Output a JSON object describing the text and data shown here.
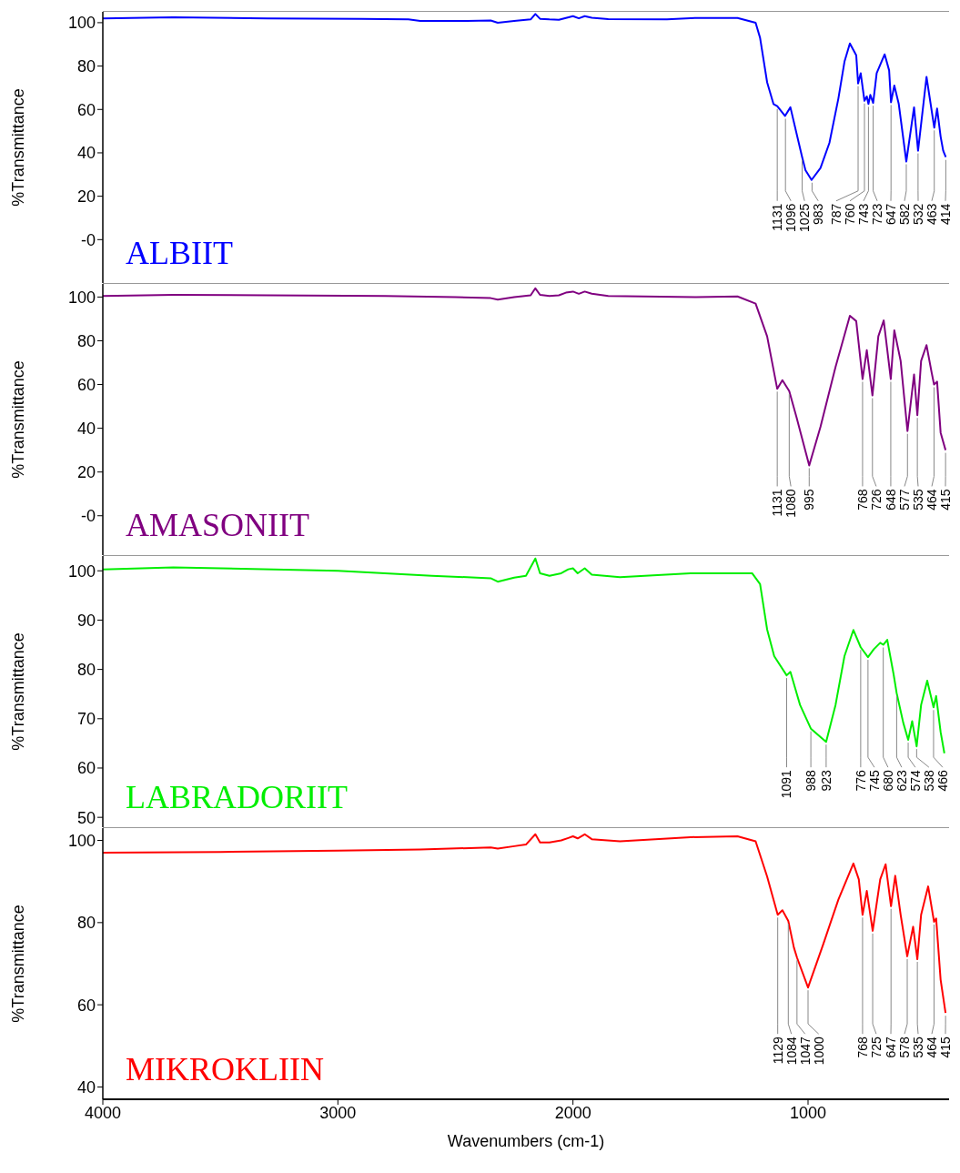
{
  "chart_data": [
    {
      "type": "line",
      "ylabel": "%Transmittance",
      "xlim": [
        4000,
        400
      ],
      "xticks": [
        4000,
        3000,
        2000,
        1000
      ],
      "ylim": [
        -20,
        105
      ],
      "yticks": [
        {
          "value": 0,
          "label": "-0"
        },
        20,
        40,
        60,
        80,
        100
      ],
      "tick_labels": "y",
      "x": [
        4000,
        3700,
        3300,
        2900,
        2700,
        2650,
        2450,
        2350,
        2320,
        2250,
        2180,
        2160,
        2140,
        2100,
        2060,
        2030,
        2000,
        1975,
        1950,
        1920,
        1850,
        1600,
        1476,
        1300,
        1223,
        1204,
        1174,
        1147,
        1131,
        1098,
        1075,
        1049,
        1025,
        1011,
        985,
        947,
        909,
        871,
        845,
        822,
        795,
        787,
        776,
        760,
        750,
        743,
        735,
        723,
        708,
        674,
        655,
        647,
        633,
        614,
        582,
        549,
        532,
        496,
        463,
        451,
        436,
        425,
        414
      ],
      "series": [
        {
          "name": "ALBIIT",
          "color": "#0000ff",
          "values": [
            102,
            102.5,
            102,
            101.8,
            101.5,
            100.8,
            100.8,
            101,
            100,
            100.8,
            101.5,
            104,
            101.8,
            101.5,
            101.3,
            102.2,
            103,
            102,
            103,
            102.3,
            101.6,
            101.5,
            102.2,
            102.2,
            100,
            93,
            72.5,
            62.5,
            61.5,
            57,
            61,
            49,
            38,
            32,
            27.5,
            33,
            44.6,
            65,
            82,
            90.4,
            85,
            72,
            76.7,
            64,
            66,
            62.5,
            66.7,
            63,
            76.7,
            85.4,
            78,
            63.3,
            71,
            62.5,
            36,
            61,
            41,
            75,
            51.6,
            60.4,
            47.5,
            41,
            38
          ]
        }
      ],
      "annotations": [
        {
          "text": "1131",
          "x": 1131,
          "y": 61.5
        },
        {
          "text": "1096",
          "x": 1096,
          "y": 57
        },
        {
          "text": "1025",
          "x": 1025,
          "y": 38
        },
        {
          "text": "983",
          "x": 983,
          "y": 27.5
        },
        {
          "text": "787",
          "x": 787,
          "y": 72
        },
        {
          "text": "760",
          "x": 760,
          "y": 64
        },
        {
          "text": "743",
          "x": 743,
          "y": 62.5
        },
        {
          "text": "723",
          "x": 723,
          "y": 63
        },
        {
          "text": "647",
          "x": 647,
          "y": 63.3
        },
        {
          "text": "582",
          "x": 582,
          "y": 36
        },
        {
          "text": "532",
          "x": 532,
          "y": 41
        },
        {
          "text": "463",
          "x": 463,
          "y": 51.6
        },
        {
          "text": "414",
          "x": 414,
          "y": 38
        }
      ]
    },
    {
      "type": "line",
      "ylabel": "%Transmittance",
      "xlim": [
        4000,
        400
      ],
      "xticks": [
        4000,
        3000,
        2000,
        1000
      ],
      "ylim": [
        -18,
        106
      ],
      "yticks": [
        {
          "value": 0,
          "label": "-0"
        },
        20,
        40,
        60,
        80,
        100
      ],
      "tick_labels": "y",
      "x": [
        4000,
        3700,
        3300,
        2800,
        2500,
        2350,
        2320,
        2250,
        2180,
        2160,
        2140,
        2100,
        2060,
        2030,
        2000,
        1975,
        1950,
        1920,
        1850,
        1476,
        1300,
        1223,
        1174,
        1131,
        1109,
        1080,
        1049,
        995,
        947,
        883,
        822,
        795,
        768,
        750,
        726,
        701,
        678,
        648,
        633,
        606,
        577,
        549,
        535,
        519,
        496,
        474,
        464,
        451,
        436,
        415
      ],
      "series": [
        {
          "name": "AMASONIIT",
          "color": "#800080",
          "values": [
            100.5,
            101,
            100.8,
            100.5,
            100,
            99.5,
            98.8,
            100,
            100.8,
            104,
            101,
            100.5,
            100.8,
            102,
            102.5,
            101.5,
            102.5,
            101.5,
            100.5,
            100,
            100.3,
            97,
            82,
            58,
            62,
            57,
            45,
            23,
            40.7,
            68,
            91.4,
            89,
            62.5,
            75.7,
            55,
            82,
            89.3,
            62.5,
            84.8,
            70.8,
            38.7,
            64.6,
            46,
            70.8,
            78,
            65.4,
            60,
            61.3,
            38,
            30
          ]
        }
      ],
      "annotations": [
        {
          "text": "1131",
          "x": 1131,
          "y": 58
        },
        {
          "text": "1080",
          "x": 1080,
          "y": 57
        },
        {
          "text": "995",
          "x": 995,
          "y": 23
        },
        {
          "text": "768",
          "x": 768,
          "y": 62.5
        },
        {
          "text": "726",
          "x": 726,
          "y": 55
        },
        {
          "text": "648",
          "x": 648,
          "y": 62.5
        },
        {
          "text": "577",
          "x": 577,
          "y": 38.7
        },
        {
          "text": "535",
          "x": 535,
          "y": 46
        },
        {
          "text": "464",
          "x": 464,
          "y": 60
        },
        {
          "text": "415",
          "x": 415,
          "y": 30
        }
      ]
    },
    {
      "type": "line",
      "ylabel": "%Transmittance",
      "xlim": [
        4000,
        400
      ],
      "xticks": [
        4000,
        3000,
        2000,
        1000
      ],
      "ylim": [
        48,
        103
      ],
      "yticks": [
        50,
        60,
        70,
        80,
        90,
        100
      ],
      "tick_labels": "y",
      "x": [
        4000,
        3700,
        3000,
        2600,
        2350,
        2320,
        2250,
        2200,
        2160,
        2140,
        2100,
        2050,
        2020,
        2000,
        1980,
        1950,
        1920,
        1800,
        1500,
        1351,
        1238,
        1204,
        1174,
        1144,
        1091,
        1075,
        1034,
        988,
        923,
        883,
        845,
        807,
        776,
        745,
        720,
        693,
        680,
        663,
        636,
        623,
        595,
        574,
        557,
        538,
        519,
        493,
        466,
        455,
        436,
        420
      ],
      "series": [
        {
          "name": "LABRADORIIT",
          "color": "#00ee00",
          "values": [
            100.3,
            100.7,
            100,
            99,
            98.5,
            97.8,
            98.6,
            99,
            102.5,
            99.5,
            99,
            99.5,
            100.3,
            100.5,
            99.5,
            100.5,
            99.2,
            98.7,
            99.5,
            99.5,
            99.5,
            97.3,
            88.1,
            82.7,
            78.8,
            79.5,
            72.8,
            68,
            65.3,
            72.8,
            82.7,
            88,
            84.5,
            82.5,
            84.1,
            85.4,
            85,
            86,
            79,
            75.2,
            69.2,
            65.7,
            69.5,
            64.4,
            72.8,
            77.7,
            72.3,
            74.6,
            67.3,
            63
          ]
        }
      ],
      "annotations": [
        {
          "text": "1091",
          "x": 1091,
          "y": 78.8
        },
        {
          "text": "988",
          "x": 988,
          "y": 68
        },
        {
          "text": "923",
          "x": 923,
          "y": 65.3
        },
        {
          "text": "776",
          "x": 776,
          "y": 84.5
        },
        {
          "text": "745",
          "x": 745,
          "y": 82.5
        },
        {
          "text": "680",
          "x": 680,
          "y": 85
        },
        {
          "text": "623",
          "x": 623,
          "y": 75.2
        },
        {
          "text": "574",
          "x": 574,
          "y": 65.7
        },
        {
          "text": "538",
          "x": 538,
          "y": 64.4
        },
        {
          "text": "466",
          "x": 466,
          "y": 72.3
        }
      ]
    },
    {
      "type": "line",
      "ylabel": "%Transmittance",
      "xlabel": "Wavenumbers (cm-1)",
      "xlim": [
        4000,
        400
      ],
      "xticks": [
        4000,
        3000,
        2000,
        1000
      ],
      "ylim": [
        37,
        103
      ],
      "yticks": [
        40,
        60,
        80,
        100
      ],
      "x": [
        4000,
        3500,
        3000,
        2650,
        2350,
        2320,
        2250,
        2200,
        2160,
        2140,
        2100,
        2050,
        2020,
        2000,
        1980,
        1950,
        1920,
        1800,
        1500,
        1300,
        1223,
        1174,
        1129,
        1109,
        1084,
        1060,
        1047,
        1000,
        935,
        871,
        807,
        784,
        768,
        750,
        725,
        693,
        670,
        647,
        629,
        606,
        578,
        553,
        535,
        519,
        489,
        464,
        455,
        436,
        415
      ],
      "series": [
        {
          "name": "MIKROKLIIN",
          "color": "#ff0000",
          "values": [
            97,
            97.2,
            97.5,
            97.8,
            98.3,
            98,
            98.6,
            99,
            101.5,
            99.5,
            99.5,
            100,
            100.6,
            101,
            100.5,
            101.5,
            100.3,
            99.8,
            100.8,
            101,
            99.8,
            91.2,
            81.9,
            83,
            80.4,
            73.9,
            71.5,
            64.2,
            74.8,
            85.6,
            94.4,
            90.5,
            81.9,
            87.7,
            78,
            90.5,
            94.2,
            84,
            91.4,
            81.9,
            71.8,
            79,
            71.1,
            81.9,
            88.8,
            80.2,
            81,
            66.1,
            58
          ]
        }
      ],
      "annotations": [
        {
          "text": "1129",
          "x": 1129,
          "y": 81.9
        },
        {
          "text": "1084",
          "x": 1084,
          "y": 80.4
        },
        {
          "text": "1047",
          "x": 1047,
          "y": 71.5
        },
        {
          "text": "1000",
          "x": 1000,
          "y": 64.2
        },
        {
          "text": "768",
          "x": 768,
          "y": 81.9
        },
        {
          "text": "725",
          "x": 725,
          "y": 78
        },
        {
          "text": "647",
          "x": 647,
          "y": 84
        },
        {
          "text": "578",
          "x": 578,
          "y": 71.8
        },
        {
          "text": "535",
          "x": 535,
          "y": 71.1
        },
        {
          "text": "464",
          "x": 464,
          "y": 80.2
        },
        {
          "text": "415",
          "x": 415,
          "y": 58
        }
      ]
    }
  ]
}
